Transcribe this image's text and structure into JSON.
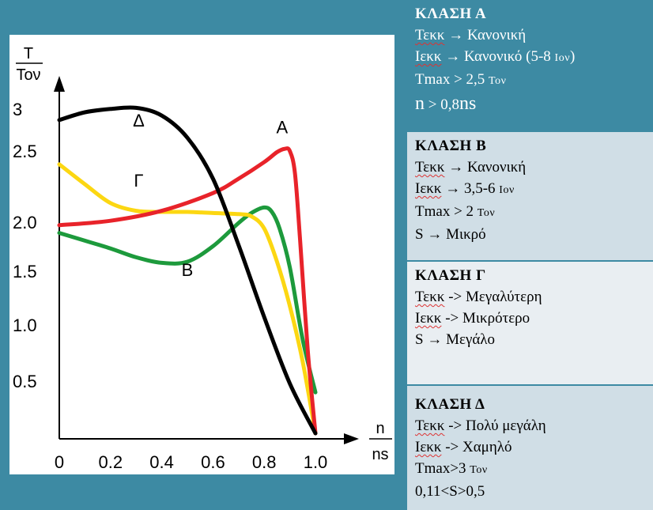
{
  "chart_data": {
    "type": "line",
    "ylabel_top": "T",
    "ylabel_bottom": "Toν",
    "xlabel_top": "n",
    "xlabel_bottom": "ns",
    "x_ticks": [
      "0",
      "0.2",
      "0.4",
      "0.6",
      "0.8",
      "1.0"
    ],
    "y_ticks": [
      {
        "label": "0.5",
        "value": 0.5
      },
      {
        "label": "1.0",
        "value": 1.0
      },
      {
        "label": "1.5",
        "value": 1.5
      },
      {
        "label": "2.0",
        "value": 2.0
      },
      {
        "label": "2.5",
        "value": 2.5
      },
      {
        "label": "3",
        "value": 3.0
      }
    ],
    "xlim": [
      0,
      1.0
    ],
    "ylim": [
      0,
      3.1
    ],
    "grid": false,
    "series": [
      {
        "name": "Δ",
        "color": "#000000",
        "x": [
          0,
          0.1,
          0.2,
          0.3,
          0.4,
          0.5,
          0.6,
          0.7,
          0.8,
          0.9,
          1.0
        ],
        "y": [
          2.88,
          2.95,
          2.98,
          2.99,
          2.92,
          2.72,
          2.35,
          1.75,
          1.1,
          0.5,
          0.05
        ]
      },
      {
        "name": "A",
        "color": "#e8232a",
        "x": [
          0,
          0.2,
          0.4,
          0.6,
          0.7,
          0.8,
          0.85,
          0.88,
          0.9,
          0.92,
          0.94,
          0.97,
          1.0
        ],
        "y": [
          1.93,
          1.97,
          2.06,
          2.22,
          2.35,
          2.5,
          2.59,
          2.62,
          2.6,
          2.4,
          1.8,
          0.8,
          0.05
        ]
      },
      {
        "name": "Γ",
        "color": "#fcd712",
        "x": [
          0,
          0.1,
          0.2,
          0.3,
          0.4,
          0.5,
          0.6,
          0.7,
          0.75,
          0.8,
          0.85,
          0.9,
          0.95,
          1.0
        ],
        "y": [
          2.48,
          2.3,
          2.13,
          2.06,
          2.05,
          2.05,
          2.04,
          2.03,
          2.01,
          1.9,
          1.6,
          1.2,
          0.7,
          0.05
        ]
      },
      {
        "name": "B",
        "color": "#1d9a3c",
        "x": [
          0,
          0.1,
          0.2,
          0.3,
          0.4,
          0.5,
          0.6,
          0.7,
          0.75,
          0.8,
          0.83,
          0.86,
          0.9,
          0.95,
          1.0
        ],
        "y": [
          1.86,
          1.79,
          1.72,
          1.64,
          1.59,
          1.6,
          1.74,
          1.95,
          2.04,
          2.09,
          2.05,
          1.9,
          1.55,
          0.9,
          0.42
        ]
      }
    ],
    "curve_labels": [
      {
        "text": "Δ",
        "x": 0.31,
        "y": 2.82
      },
      {
        "text": "A",
        "x": 0.87,
        "y": 2.76
      },
      {
        "text": "Γ",
        "x": 0.31,
        "y": 2.28
      },
      {
        "text": "B",
        "x": 0.5,
        "y": 1.47
      }
    ]
  },
  "panels": {
    "a": {
      "title": "ΚΛΑΣΗ Α",
      "l1a": "Τεκκ",
      "l1b": " → Κανονική",
      "l2a": "Ιεκκ",
      "l2b": " → Κανονικό (5-8 ",
      "l2c": "Ιον",
      "l2d": ")",
      "l3a": "Tmax > 2,5 ",
      "l3b": "Τον",
      "l4a": "n",
      "l4b": " > 0,8",
      "l4c": "ns"
    },
    "b": {
      "title": "ΚΛΑΣΗ  Β",
      "l1a": "Τεκκ",
      "l1b": " → Κανονική",
      "l2a": "Ιεκκ",
      "l2b": " → 3,5-6 ",
      "l2c": "Ιον",
      "l3a": "Tmax > 2 ",
      "l3b": "Τον",
      "l4": "S → Μικρό"
    },
    "c": {
      "title": "ΚΛΑΣΗ  Γ",
      "l1a": "Τεκκ",
      "l1b": " -> Μεγαλύτερη",
      "l2a": "Ιεκκ",
      "l2b": " -> Μικρότερο",
      "l3": "S → Μεγάλο"
    },
    "d": {
      "title": "ΚΛΑΣΗ  Δ",
      "l1a": "Τεκκ",
      "l1b": " -> Πολύ μεγάλη",
      "l2a": "Ιεκκ",
      "l2b": " -> Χαμηλό",
      "l3a": "Tmax>3 ",
      "l3b": "Τον",
      "l4": "0,11<S>0,5"
    }
  }
}
